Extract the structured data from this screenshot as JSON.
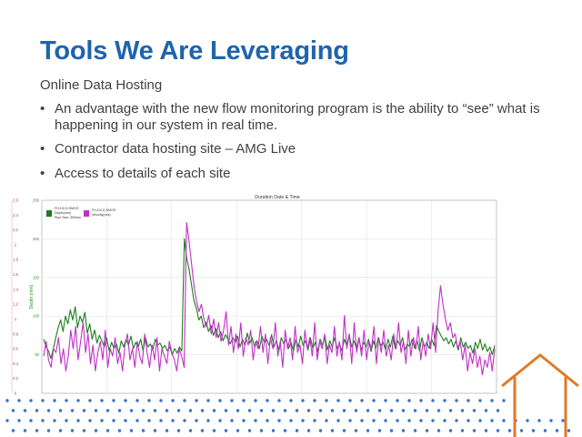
{
  "slide": {
    "title": "Tools We Are Leveraging",
    "subtitle": "Online Data Hosting",
    "bullets": [
      "An advantage with the new flow monitoring program is the ability to “see” what is happening in our system in real time.",
      "Contractor data hosting site – AMG Live",
      "Access to details of each site"
    ]
  },
  "colors": {
    "title": "#1f64ad",
    "text": "#404040",
    "depth_series": "#1a7f1a",
    "velocity_series": "#c030c8",
    "left_axis": "#c03050",
    "depth_axis": "#2a8a2a",
    "dots": "#3a73c0",
    "house": "#e07b28"
  },
  "chart_data": {
    "type": "line",
    "title": "Duration Date & Time",
    "ylabel": "Depth (mm)",
    "ylabel_left": "",
    "grid": true,
    "legend": [
      {
        "line1": "FH-DZ-D-SMOS",
        "line2": "Depth(mm)",
        "line3": "Pipe Size: 300mm"
      },
      {
        "line1": "FH-DZ-D-SMOS",
        "line2": "Velocity(m/s)"
      }
    ],
    "yticks_right": [
      "250",
      "200",
      "150",
      "100",
      "50",
      ""
    ],
    "ylim_depth": [
      0,
      250
    ],
    "yticks_left": [
      "2.6",
      "2.4",
      "2.2",
      "2",
      "1.8",
      "1.6",
      "1.4",
      "1.2",
      "1",
      "0.8",
      "0.6",
      "0.4",
      "0.2",
      "0"
    ],
    "ylim_velocity": [
      0,
      2.6
    ],
    "series": [
      {
        "name": "Depth(mm)",
        "values": [
          70,
          60,
          55,
          45,
          58,
          72,
          85,
          95,
          80,
          100,
          90,
          108,
          95,
          112,
          85,
          100,
          92,
          105,
          78,
          90,
          70,
          82,
          65,
          75,
          68,
          60,
          72,
          55,
          66,
          58,
          64,
          52,
          68,
          60,
          70,
          62,
          74,
          58,
          66,
          60,
          70,
          55,
          72,
          60,
          64,
          56,
          70,
          62,
          65,
          58,
          62,
          55,
          60,
          50,
          58,
          52,
          60,
          55,
          200,
          175,
          160,
          140,
          120,
          110,
          95,
          100,
          85,
          92,
          80,
          88,
          75,
          84,
          72,
          80,
          68,
          76,
          70,
          64,
          72,
          66,
          74,
          60,
          70,
          62,
          78,
          65,
          72,
          60,
          68,
          58,
          74,
          66,
          70,
          62,
          76,
          60,
          68,
          55,
          72,
          64,
          70,
          58,
          66,
          54,
          70,
          60,
          74,
          62,
          68,
          56,
          72,
          58,
          66,
          54,
          70,
          62,
          74,
          56,
          68,
          60,
          72,
          58,
          64,
          55,
          70,
          62,
          76,
          60,
          68,
          58,
          72,
          56,
          66,
          60,
          70,
          54,
          68,
          58,
          72,
          62,
          66,
          56,
          70,
          60,
          74,
          58,
          68,
          62,
          72,
          56,
          64,
          60,
          70,
          58,
          68,
          55,
          72,
          60,
          66,
          58,
          70,
          62,
          88,
          80,
          74,
          68,
          72,
          64,
          70,
          60,
          68,
          56,
          72,
          60,
          66,
          58,
          62,
          52,
          66,
          58,
          70,
          56,
          64,
          54,
          60,
          50,
          62
        ]
      },
      {
        "name": "Velocity(m/s)",
        "values": [
          0.5,
          0.7,
          0.45,
          0.35,
          0.6,
          0.55,
          0.75,
          0.4,
          0.6,
          0.3,
          0.5,
          0.85,
          0.6,
          0.9,
          0.45,
          0.7,
          0.95,
          0.55,
          0.8,
          0.4,
          0.65,
          0.3,
          0.55,
          0.7,
          0.45,
          0.85,
          0.35,
          0.6,
          0.5,
          0.75,
          0.4,
          0.55,
          0.3,
          0.65,
          0.8,
          0.45,
          0.6,
          0.35,
          0.7,
          0.5,
          0.4,
          0.8,
          0.55,
          0.35,
          0.65,
          0.45,
          0.75,
          0.3,
          0.6,
          0.5,
          0.4,
          0.7,
          0.55,
          0.45,
          0.3,
          0.6,
          0.5,
          0.35,
          2.3,
          2.05,
          1.75,
          1.45,
          1.25,
          1.1,
          1.2,
          1.0,
          0.9,
          1.05,
          0.8,
          1.0,
          0.75,
          0.95,
          0.7,
          0.85,
          1.1,
          0.65,
          0.9,
          0.55,
          0.8,
          0.6,
          0.95,
          0.5,
          0.75,
          0.65,
          0.85,
          0.45,
          0.7,
          0.6,
          0.9,
          0.55,
          0.8,
          0.4,
          0.75,
          0.6,
          0.95,
          0.5,
          0.7,
          0.35,
          0.85,
          0.6,
          0.75,
          0.45,
          0.9,
          0.55,
          0.65,
          0.4,
          0.85,
          0.6,
          0.75,
          0.5,
          0.95,
          0.45,
          0.7,
          0.6,
          0.8,
          0.4,
          0.65,
          0.55,
          0.9,
          0.5,
          0.7,
          0.45,
          1.05,
          0.6,
          0.8,
          0.4,
          0.95,
          0.55,
          0.75,
          0.5,
          0.85,
          0.45,
          0.7,
          0.6,
          0.9,
          0.4,
          0.75,
          0.55,
          0.85,
          0.5,
          0.65,
          0.45,
          0.8,
          0.6,
          0.95,
          0.55,
          0.7,
          0.4,
          0.85,
          0.5,
          0.75,
          0.6,
          0.9,
          0.45,
          0.7,
          0.5,
          0.8,
          0.6,
          0.95,
          0.55,
          1.1,
          1.45,
          1.2,
          1.0,
          0.85,
          0.95,
          0.75,
          0.8,
          0.6,
          0.7,
          0.45,
          0.65,
          0.3,
          0.55,
          0.4,
          0.6,
          0.35,
          0.5,
          0.25,
          0.45,
          0.35,
          0.55,
          0.3,
          0.6
        ]
      }
    ]
  }
}
